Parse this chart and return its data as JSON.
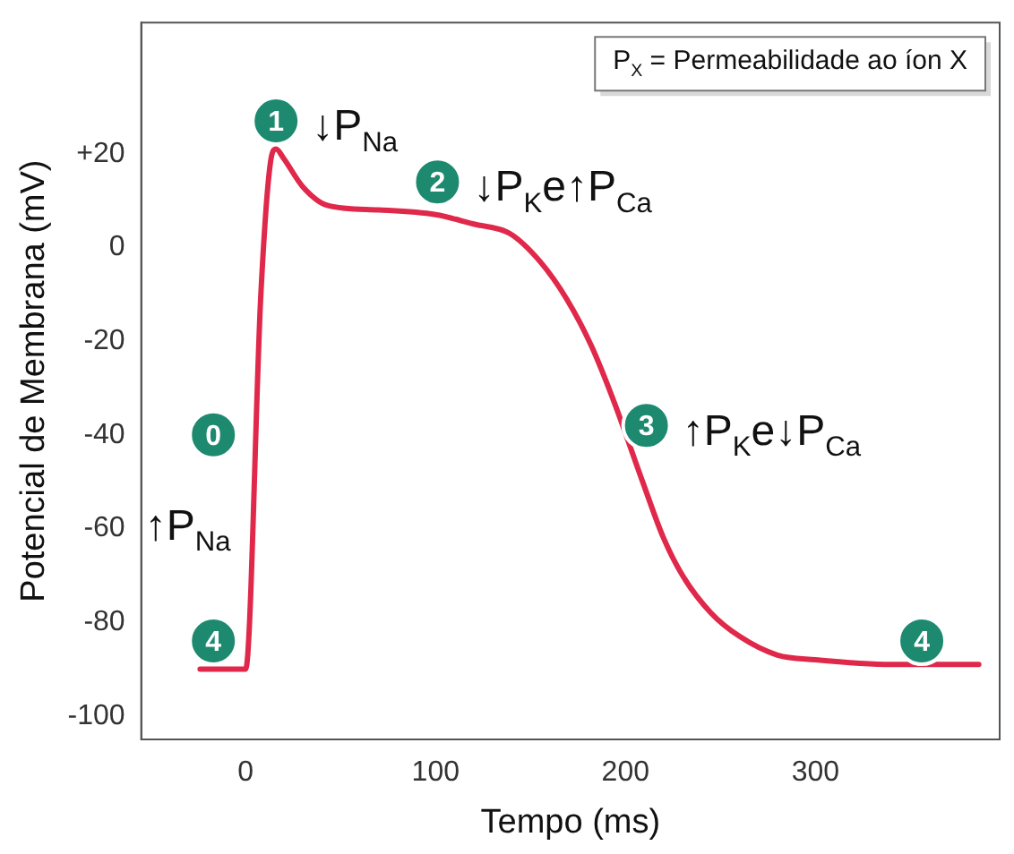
{
  "chart_data": {
    "type": "line",
    "xlabel": "Tempo (ms)",
    "ylabel": "Potencial de Membrana (mV)",
    "x": [
      -24,
      0,
      8,
      13,
      16,
      20,
      30,
      43,
      70,
      100,
      120,
      139,
      155,
      169,
      182,
      194,
      209,
      220,
      230,
      245,
      260,
      280,
      300,
      340,
      386
    ],
    "series": [
      {
        "color": "#e0284a",
        "values": [
          -90,
          -90,
          -10,
          18,
          21,
          19,
          13,
          9,
          8,
          7,
          5,
          3,
          -3,
          -11,
          -21,
          -33,
          -50,
          -62,
          -70,
          -78,
          -83,
          -87,
          -88,
          -89,
          -89
        ]
      }
    ],
    "xlim": [
      -55,
      397
    ],
    "ylim": [
      -105,
      48
    ],
    "xticks": [
      0,
      100,
      200,
      300
    ],
    "yticks": [
      {
        "value": 20,
        "label": "+20"
      },
      0,
      -20,
      -40,
      -60,
      -80,
      -100
    ],
    "grid": false,
    "legend": false,
    "marker": "none",
    "line_style": "solid",
    "annotations": [
      "P$_{X}$ = Permeabilidade ao íon X",
      {
        "text": "0",
        "x": -17,
        "y": -40
      },
      "↑P$_{Na}$",
      {
        "text": "1",
        "x": 16,
        "y": 27
      },
      "↓P$_{Na}$",
      {
        "text": "2",
        "x": 101,
        "y": 14
      },
      "↓P$_{K}$e↑P$_{Ca}$",
      {
        "text": "3",
        "x": 211,
        "y": -38
      },
      "↑P$_{K}$e↓P$_{Ca}$",
      {
        "text": "4",
        "x": -17,
        "y": -84
      },
      {
        "text": "4",
        "x": 356,
        "y": -84
      }
    ]
  }
}
